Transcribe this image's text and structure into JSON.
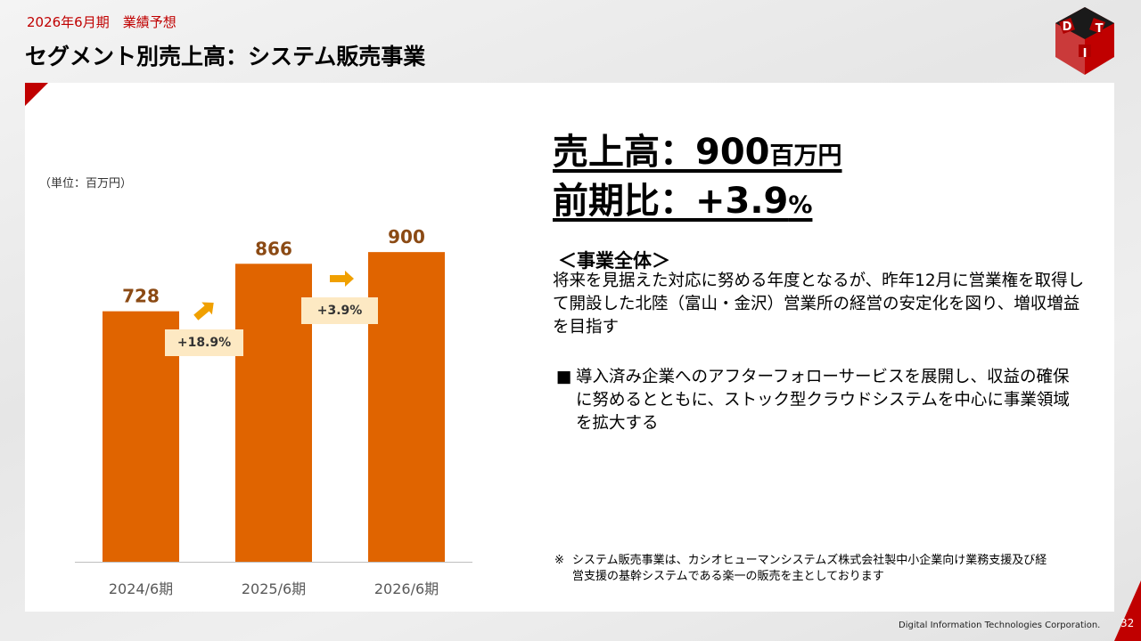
{
  "header": {
    "subtitle": "2026年6月期　業績予想",
    "title": "セグメント別売上高：システム販売事業"
  },
  "logo": {
    "letters": [
      "D",
      "I",
      "T"
    ]
  },
  "unit_label": "（単位：百万円）",
  "chart_data": {
    "type": "bar",
    "categories": [
      "2024/6期",
      "2025/6期",
      "2026/6期"
    ],
    "values": [
      728,
      866,
      900
    ],
    "value_labels": [
      "728",
      "866",
      "900"
    ],
    "growth_labels": [
      "+18.9%",
      "+3.9%"
    ],
    "ylim": [
      0,
      1000
    ],
    "bar_color": "#e06400",
    "value_label_color": "#8b4a14",
    "arrow_color": "#f0a000"
  },
  "summary": {
    "sales_prefix": "売上高：900",
    "sales_unit": "百万円",
    "yoy_prefix": "前期比：+3.9",
    "yoy_unit": "%"
  },
  "section": {
    "heading": "＜事業全体＞",
    "description": "将来を見据えた対応に努める年度となるが、昨年12月に営業権を取得して開設した北陸（富山・金沢）営業所の経営の安定化を図り、増収増益を目指す",
    "bullet_mark": "■",
    "bullet_text": "導入済み企業へのアフターフォローサービスを展開し、収益の確保に努めるとともに、ストック型クラウドシステムを中心に事業領域を拡大する"
  },
  "note": {
    "mark": "※",
    "text": "システム販売事業は、カシオヒューマンシステムズ株式会社製中小企業向け業務支援及び経営支援の基幹システムである楽一の販売を主としております"
  },
  "footer": {
    "company": "Digital Information Technologies Corporation.",
    "page": "32"
  },
  "colors": {
    "accent_red": "#c00000",
    "growth_box": "#fde9c3"
  }
}
